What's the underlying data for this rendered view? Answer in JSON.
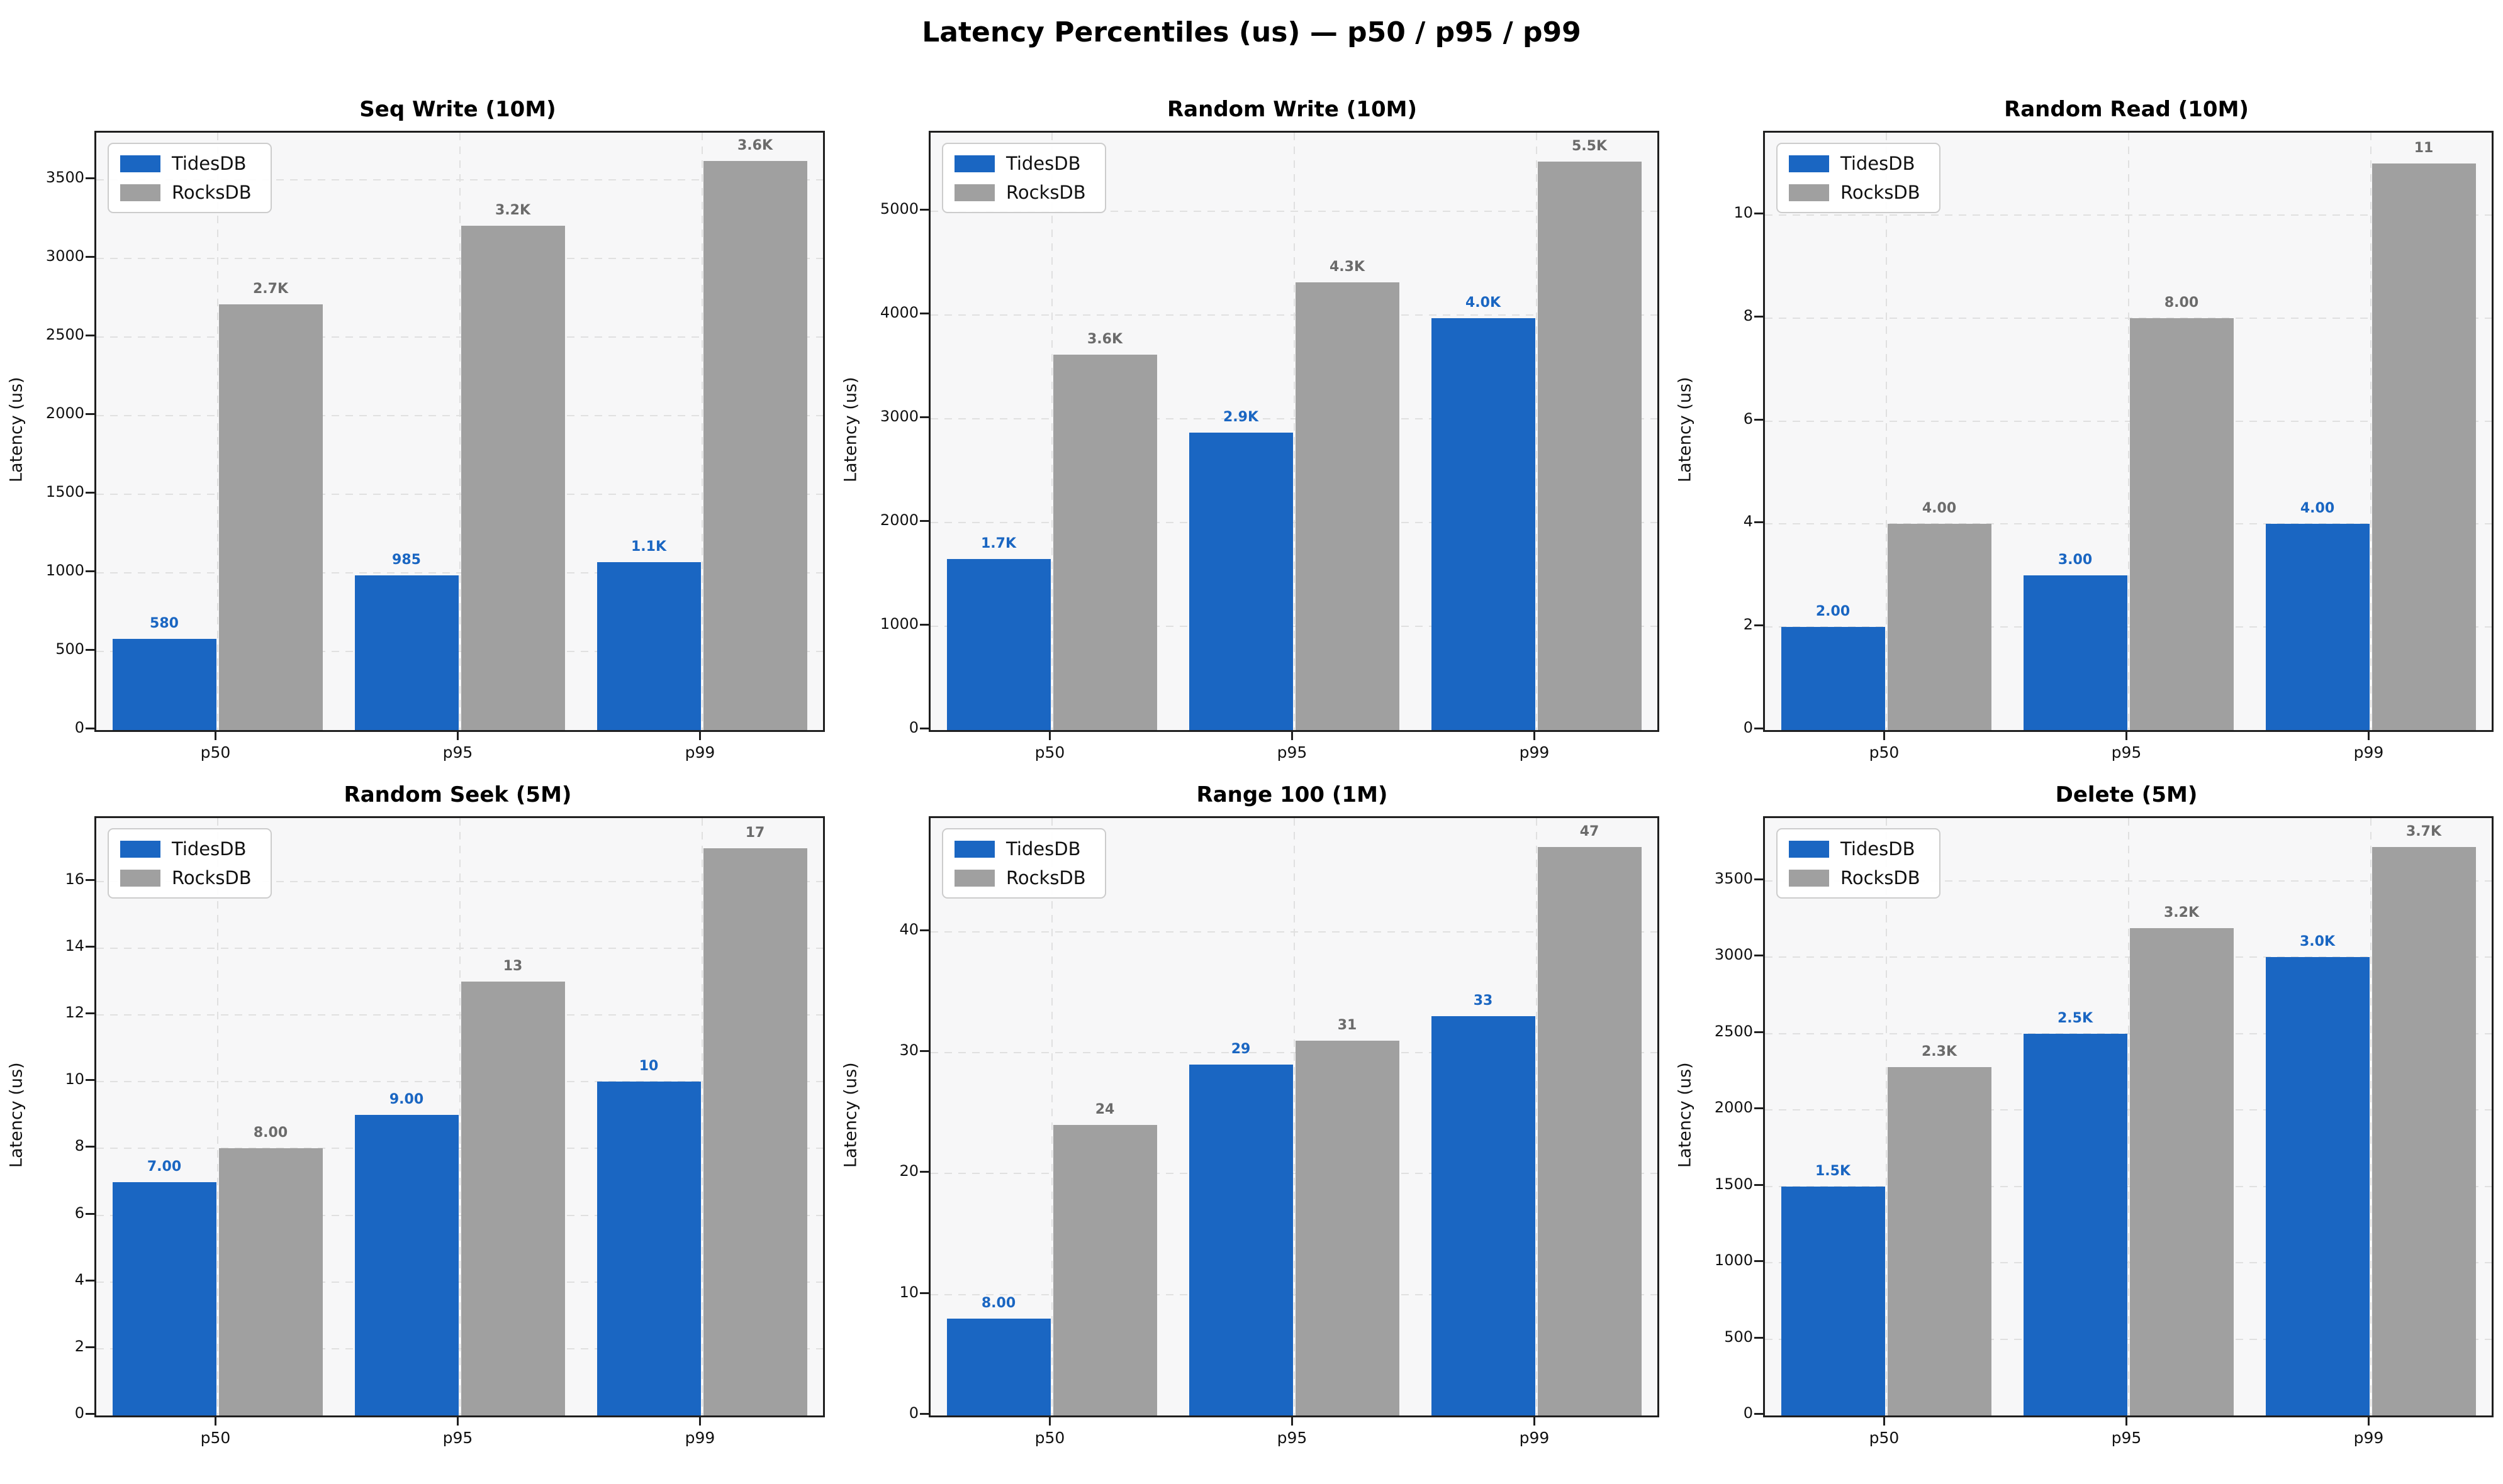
{
  "figure_title": "Latency Percentiles (us) — p50 / p95 / p99",
  "colors": {
    "tidesdb": "#1a66c2",
    "rocksdb": "#a0a0a0",
    "tidesdb_label": "#1a66c2",
    "rocksdb_label": "#6b6b6b",
    "grid": "#e0e0e0",
    "plot_bg": "#f7f7f8",
    "spine": "#1f1f1f"
  },
  "legend": {
    "items": [
      "TidesDB",
      "RocksDB"
    ]
  },
  "chart_data": [
    {
      "type": "bar",
      "title": "Seq Write (10M)",
      "categories": [
        "p50",
        "p95",
        "p99"
      ],
      "series": [
        {
          "name": "TidesDB",
          "color_key": "tidesdb",
          "values": [
            580,
            985,
            1070
          ],
          "labels": [
            "580",
            "985",
            "1.1K"
          ]
        },
        {
          "name": "RocksDB",
          "color_key": "rocksdb",
          "values": [
            2710,
            3210,
            3620
          ],
          "labels": [
            "2.7K",
            "3.2K",
            "3.6K"
          ]
        }
      ],
      "xlabel": "",
      "ylabel": "Latency (us)",
      "yticks": [
        0,
        500,
        1000,
        1500,
        2000,
        2500,
        3000,
        3500
      ],
      "ylim": [
        0,
        3800
      ],
      "grid": true,
      "legend_position": "upper left"
    },
    {
      "type": "bar",
      "title": "Random Write (10M)",
      "categories": [
        "p50",
        "p95",
        "p99"
      ],
      "series": [
        {
          "name": "TidesDB",
          "color_key": "tidesdb",
          "values": [
            1650,
            2870,
            3970
          ],
          "labels": [
            "1.7K",
            "2.9K",
            "4.0K"
          ]
        },
        {
          "name": "RocksDB",
          "color_key": "rocksdb",
          "values": [
            3620,
            4320,
            5480
          ],
          "labels": [
            "3.6K",
            "4.3K",
            "5.5K"
          ]
        }
      ],
      "xlabel": "",
      "ylabel": "Latency (us)",
      "yticks": [
        0,
        1000,
        2000,
        3000,
        4000,
        5000
      ],
      "ylim": [
        0,
        5760
      ],
      "grid": true,
      "legend_position": "upper left"
    },
    {
      "type": "bar",
      "title": "Random Read (10M)",
      "categories": [
        "p50",
        "p95",
        "p99"
      ],
      "series": [
        {
          "name": "TidesDB",
          "color_key": "tidesdb",
          "values": [
            2,
            3,
            4
          ],
          "labels": [
            "2.00",
            "3.00",
            "4.00"
          ]
        },
        {
          "name": "RocksDB",
          "color_key": "rocksdb",
          "values": [
            4,
            8,
            11
          ],
          "labels": [
            "4.00",
            "8.00",
            "11"
          ]
        }
      ],
      "xlabel": "",
      "ylabel": "Latency (us)",
      "yticks": [
        0,
        2,
        4,
        6,
        8,
        10
      ],
      "ylim": [
        0,
        11.6
      ],
      "grid": true,
      "legend_position": "upper left"
    },
    {
      "type": "bar",
      "title": "Random Seek (5M)",
      "categories": [
        "p50",
        "p95",
        "p99"
      ],
      "series": [
        {
          "name": "TidesDB",
          "color_key": "tidesdb",
          "values": [
            7,
            9,
            10
          ],
          "labels": [
            "7.00",
            "9.00",
            "10"
          ]
        },
        {
          "name": "RocksDB",
          "color_key": "rocksdb",
          "values": [
            8,
            13,
            17
          ],
          "labels": [
            "8.00",
            "13",
            "17"
          ]
        }
      ],
      "xlabel": "",
      "ylabel": "Latency (us)",
      "yticks": [
        0,
        2,
        4,
        6,
        8,
        10,
        12,
        14,
        16
      ],
      "ylim": [
        0,
        17.9
      ],
      "grid": true,
      "legend_position": "upper left"
    },
    {
      "type": "bar",
      "title": "Range 100 (1M)",
      "categories": [
        "p50",
        "p95",
        "p99"
      ],
      "series": [
        {
          "name": "TidesDB",
          "color_key": "tidesdb",
          "values": [
            8,
            29,
            33
          ],
          "labels": [
            "8.00",
            "29",
            "33"
          ]
        },
        {
          "name": "RocksDB",
          "color_key": "rocksdb",
          "values": [
            24,
            31,
            47
          ],
          "labels": [
            "24",
            "31",
            "47"
          ]
        }
      ],
      "xlabel": "",
      "ylabel": "Latency (us)",
      "yticks": [
        0,
        10,
        20,
        30,
        40
      ],
      "ylim": [
        0,
        49.4
      ],
      "grid": true,
      "legend_position": "upper left"
    },
    {
      "type": "bar",
      "title": "Delete (5M)",
      "categories": [
        "p50",
        "p95",
        "p99"
      ],
      "series": [
        {
          "name": "TidesDB",
          "color_key": "tidesdb",
          "values": [
            1500,
            2500,
            3000
          ],
          "labels": [
            "1.5K",
            "2.5K",
            "3.0K"
          ]
        },
        {
          "name": "RocksDB",
          "color_key": "rocksdb",
          "values": [
            2280,
            3190,
            3720
          ],
          "labels": [
            "2.3K",
            "3.2K",
            "3.7K"
          ]
        }
      ],
      "xlabel": "",
      "ylabel": "Latency (us)",
      "yticks": [
        0,
        500,
        1000,
        1500,
        2000,
        2500,
        3000,
        3500
      ],
      "ylim": [
        0,
        3910
      ],
      "grid": true,
      "legend_position": "upper left"
    }
  ]
}
